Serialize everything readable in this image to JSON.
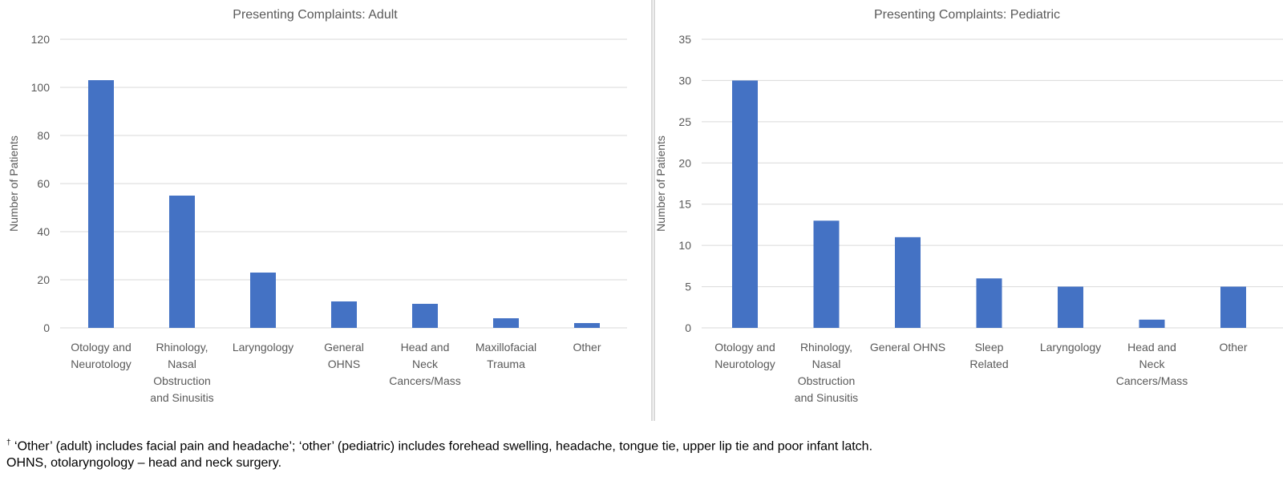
{
  "colors": {
    "bar": "#4472C4",
    "grid": "#d9d9d9",
    "axis_text": "#595959"
  },
  "chart_data": [
    {
      "type": "bar",
      "title": "Presenting Complaints: Adult",
      "xlabel": "",
      "ylabel": "Number of Patients",
      "ylim": [
        0,
        120
      ],
      "yticks": [
        0,
        20,
        40,
        60,
        80,
        100,
        120
      ],
      "categories": [
        [
          "Otology and",
          "Neurotology"
        ],
        [
          "Rhinology,",
          "Nasal",
          "Obstruction",
          "and Sinusitis"
        ],
        [
          "Laryngology"
        ],
        [
          "General",
          "OHNS"
        ],
        [
          "Head and",
          "Neck",
          "Cancers/Mass"
        ],
        [
          "Maxillofacial",
          "Trauma"
        ],
        [
          "Other"
        ]
      ],
      "values": [
        103,
        55,
        23,
        11,
        10,
        4,
        2
      ]
    },
    {
      "type": "bar",
      "title": "Presenting Complaints: Pediatric",
      "xlabel": "",
      "ylabel": "Number of Patients",
      "ylim": [
        0,
        35
      ],
      "yticks": [
        0,
        5,
        10,
        15,
        20,
        25,
        30,
        35
      ],
      "categories": [
        [
          "Otology and",
          "Neurotology"
        ],
        [
          "Rhinology,",
          "Nasal",
          "Obstruction",
          "and Sinusitis"
        ],
        [
          "General OHNS"
        ],
        [
          "Sleep",
          "Related"
        ],
        [
          "Laryngology"
        ],
        [
          "Head and",
          "Neck",
          "Cancers/Mass"
        ],
        [
          "Other"
        ]
      ],
      "values": [
        30,
        13,
        11,
        6,
        5,
        1,
        5
      ]
    }
  ],
  "footnotes": {
    "dagger": "†",
    "line1": " ‘Other’ (adult) includes facial pain and headache’; ‘other’ (pediatric) includes forehead swelling, headache, tongue tie, upper lip tie and poor infant latch.",
    "line2": "OHNS, otolaryngology – head and neck surgery."
  }
}
